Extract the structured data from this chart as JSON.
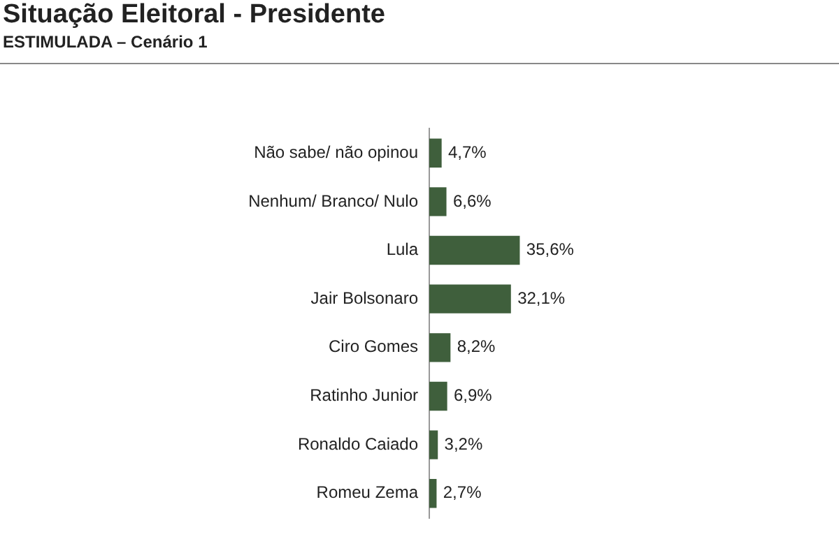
{
  "chart_data": {
    "type": "bar",
    "title": "Situação Eleitoral - Presidente",
    "subtitle": "ESTIMULADA – Cenário 1",
    "orientation": "horizontal",
    "categories": [
      "Não sabe/ não opinou",
      "Nenhum/ Branco/ Nulo",
      "Lula",
      "Jair Bolsonaro",
      "Ciro Gomes",
      "Ratinho Junior",
      "Ronaldo Caiado",
      "Romeu Zema"
    ],
    "values": [
      4.7,
      6.6,
      35.6,
      32.1,
      8.2,
      6.9,
      3.2,
      2.7
    ],
    "value_labels": [
      "4,7%",
      "6,6%",
      "35,6%",
      "32,1%",
      "8,2%",
      "6,9%",
      "3,2%",
      "2,7%"
    ],
    "color": "#3f5f3c"
  }
}
